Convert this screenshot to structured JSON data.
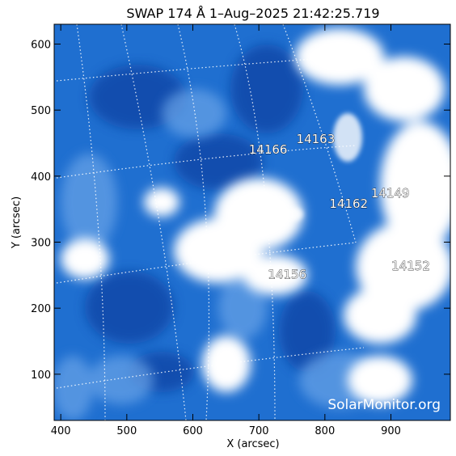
{
  "title": "SWAP 174 Å  1–Aug–2025 21:42:25.719",
  "x_axis": {
    "label": "X (arcsec)",
    "range": [
      390,
      990
    ],
    "ticks": [
      "400",
      "500",
      "600",
      "700",
      "800",
      "900"
    ]
  },
  "y_axis": {
    "label": "Y (arcsec)",
    "range": [
      30,
      630
    ],
    "ticks": [
      "100",
      "200",
      "300",
      "400",
      "500",
      "600"
    ]
  },
  "regions": [
    {
      "name": "14166",
      "x": 714,
      "y": 434
    },
    {
      "name": "14163",
      "x": 786,
      "y": 450
    },
    {
      "name": "14149",
      "x": 899,
      "y": 368
    },
    {
      "name": "14162",
      "x": 836,
      "y": 352
    },
    {
      "name": "14156",
      "x": 743,
      "y": 245
    },
    {
      "name": "14152",
      "x": 930,
      "y": 258
    }
  ],
  "credit": "SolarMonitor.org",
  "colors": {
    "background": "#ffffff",
    "image_base": "#1f6fd0",
    "image_dark": "#0f3fa0",
    "grid": "#ffffff"
  }
}
